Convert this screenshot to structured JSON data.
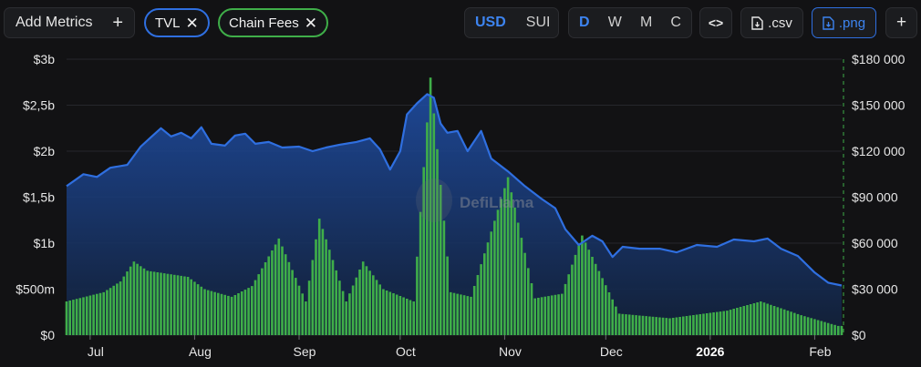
{
  "toolbar": {
    "add_metrics": "Add Metrics",
    "pills": [
      {
        "label": "TVL",
        "color": "#2f6fe0"
      },
      {
        "label": "Chain Fees",
        "color": "#3fae49"
      }
    ],
    "currency": {
      "options": [
        "USD",
        "SUI"
      ],
      "active": "USD"
    },
    "period": {
      "options": [
        "D",
        "W",
        "M",
        "C"
      ],
      "active": "D"
    },
    "embed_icon": "code-icon",
    "csv_label": ".csv",
    "png_label": ".png",
    "more_icon": "plus-icon"
  },
  "watermark": "DefiLlama",
  "chart_data": {
    "type": "area",
    "x_start": "2025-06-24",
    "x_end": "2026-02-09",
    "x_ticks": [
      {
        "label": "Jul",
        "date": "2025-07-01"
      },
      {
        "label": "Aug",
        "date": "2025-08-01"
      },
      {
        "label": "Sep",
        "date": "2025-09-01"
      },
      {
        "label": "Oct",
        "date": "2025-10-01"
      },
      {
        "label": "Nov",
        "date": "2025-11-01"
      },
      {
        "label": "Dec",
        "date": "2025-12-01"
      },
      {
        "label": "2026",
        "date": "2026-01-01",
        "bold": true
      },
      {
        "label": "Feb",
        "date": "2026-02-01"
      }
    ],
    "y_left": {
      "min": 0,
      "max": 3000000000,
      "ticks": [
        "$0",
        "$500m",
        "$1b",
        "$1,5b",
        "$2b",
        "$2,5b",
        "$3b"
      ]
    },
    "y_right": {
      "min": 0,
      "max": 180000,
      "ticks": [
        "$0",
        "$30 000",
        "$60 000",
        "$90 000",
        "$120 000",
        "$150 000",
        "$180 000"
      ]
    },
    "series": [
      {
        "name": "TVL",
        "type": "area",
        "axis": "left",
        "color": "#2f6fe0",
        "points": [
          [
            "2025-06-24",
            1.62
          ],
          [
            "2025-06-29",
            1.75
          ],
          [
            "2025-07-03",
            1.72
          ],
          [
            "2025-07-07",
            1.82
          ],
          [
            "2025-07-12",
            1.85
          ],
          [
            "2025-07-16",
            2.05
          ],
          [
            "2025-07-19",
            2.15
          ],
          [
            "2025-07-22",
            2.25
          ],
          [
            "2025-07-25",
            2.16
          ],
          [
            "2025-07-28",
            2.2
          ],
          [
            "2025-07-31",
            2.14
          ],
          [
            "2025-08-03",
            2.26
          ],
          [
            "2025-08-06",
            2.08
          ],
          [
            "2025-08-10",
            2.06
          ],
          [
            "2025-08-13",
            2.17
          ],
          [
            "2025-08-16",
            2.19
          ],
          [
            "2025-08-19",
            2.08
          ],
          [
            "2025-08-23",
            2.1
          ],
          [
            "2025-08-27",
            2.04
          ],
          [
            "2025-09-01",
            2.05
          ],
          [
            "2025-09-05",
            2.0
          ],
          [
            "2025-09-09",
            2.04
          ],
          [
            "2025-09-13",
            2.07
          ],
          [
            "2025-09-18",
            2.1
          ],
          [
            "2025-09-22",
            2.14
          ],
          [
            "2025-09-25",
            2.02
          ],
          [
            "2025-09-28",
            1.8
          ],
          [
            "2025-10-01",
            2.0
          ],
          [
            "2025-10-03",
            2.4
          ],
          [
            "2025-10-06",
            2.52
          ],
          [
            "2025-10-09",
            2.62
          ],
          [
            "2025-10-11",
            2.58
          ],
          [
            "2025-10-13",
            2.3
          ],
          [
            "2025-10-15",
            2.2
          ],
          [
            "2025-10-18",
            2.22
          ],
          [
            "2025-10-21",
            2.0
          ],
          [
            "2025-10-25",
            2.22
          ],
          [
            "2025-10-28",
            1.92
          ],
          [
            "2025-11-02",
            1.78
          ],
          [
            "2025-11-07",
            1.62
          ],
          [
            "2025-11-12",
            1.48
          ],
          [
            "2025-11-16",
            1.38
          ],
          [
            "2025-11-19",
            1.15
          ],
          [
            "2025-11-23",
            0.98
          ],
          [
            "2025-11-27",
            1.08
          ],
          [
            "2025-11-30",
            1.02
          ],
          [
            "2025-12-03",
            0.85
          ],
          [
            "2025-12-06",
            0.96
          ],
          [
            "2025-12-11",
            0.94
          ],
          [
            "2025-12-17",
            0.94
          ],
          [
            "2025-12-22",
            0.9
          ],
          [
            "2025-12-28",
            0.98
          ],
          [
            "2026-01-03",
            0.96
          ],
          [
            "2026-01-08",
            1.04
          ],
          [
            "2026-01-14",
            1.02
          ],
          [
            "2026-01-18",
            1.05
          ],
          [
            "2026-01-22",
            0.94
          ],
          [
            "2026-01-27",
            0.86
          ],
          [
            "2026-02-01",
            0.68
          ],
          [
            "2026-02-05",
            0.57
          ],
          [
            "2026-02-09",
            0.54
          ]
        ]
      },
      {
        "name": "Chain Fees",
        "type": "bar",
        "axis": "right",
        "color": "#3fae49",
        "points": [
          [
            "2025-06-24",
            22000
          ],
          [
            "2025-07-05",
            28000
          ],
          [
            "2025-07-10",
            35000
          ],
          [
            "2025-07-14",
            48000
          ],
          [
            "2025-07-18",
            42000
          ],
          [
            "2025-07-24",
            40000
          ],
          [
            "2025-07-30",
            38000
          ],
          [
            "2025-08-04",
            30000
          ],
          [
            "2025-08-12",
            25000
          ],
          [
            "2025-08-18",
            32000
          ],
          [
            "2025-08-26",
            63000
          ],
          [
            "2025-09-03",
            22000
          ],
          [
            "2025-09-07",
            76000
          ],
          [
            "2025-09-15",
            22000
          ],
          [
            "2025-09-20",
            48000
          ],
          [
            "2025-09-26",
            30000
          ],
          [
            "2025-10-05",
            22000
          ],
          [
            "2025-10-10",
            168000
          ],
          [
            "2025-10-16",
            28000
          ],
          [
            "2025-10-22",
            25000
          ],
          [
            "2025-11-02",
            103000
          ],
          [
            "2025-11-10",
            24000
          ],
          [
            "2025-11-18",
            27000
          ],
          [
            "2025-11-24",
            65000
          ],
          [
            "2025-12-05",
            14000
          ],
          [
            "2025-12-20",
            11000
          ],
          [
            "2026-01-06",
            16000
          ],
          [
            "2026-01-16",
            22000
          ],
          [
            "2026-01-28",
            13000
          ],
          [
            "2026-02-08",
            6000
          ]
        ]
      }
    ],
    "grid": true,
    "legend": "top-left (metric pills)"
  }
}
